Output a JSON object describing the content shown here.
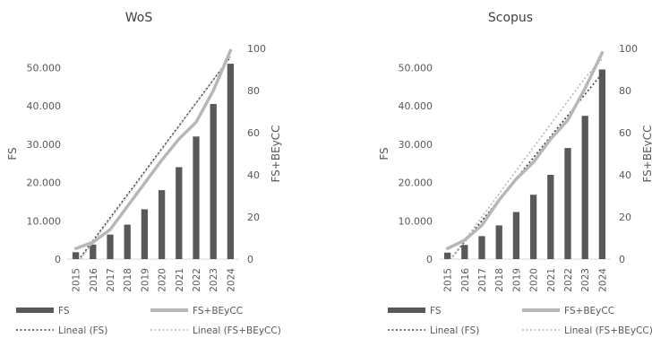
{
  "chart_data": [
    {
      "type": "bar",
      "title": "WoS",
      "categories": [
        "2015",
        "2016",
        "2017",
        "2018",
        "2019",
        "2020",
        "2021",
        "2022",
        "2023",
        "2024"
      ],
      "ylabel": "FS",
      "y2label": "FS+BEyCC",
      "ylim": [
        0,
        55000
      ],
      "y2lim": [
        0,
        100
      ],
      "yticks": [
        "0",
        "10.000",
        "20.000",
        "30.000",
        "40.000",
        "50.000"
      ],
      "y2ticks": [
        "0",
        "20",
        "40",
        "60",
        "80",
        "100"
      ],
      "series": [
        {
          "name": "FS",
          "kind": "bar",
          "axis": "left",
          "values": [
            1800,
            3800,
            6400,
            9000,
            13000,
            18000,
            24000,
            32000,
            40500,
            51000
          ]
        },
        {
          "name": "FS+BEyCC",
          "kind": "line",
          "axis": "right",
          "values": [
            5,
            8,
            14,
            25,
            36,
            47,
            57,
            65,
            80,
            99
          ]
        },
        {
          "name": "Lineal (FS)",
          "kind": "trend",
          "axis": "left",
          "values": [
            -1200,
            4800,
            10800,
            16800,
            22800,
            28800,
            34800,
            40800,
            46800,
            52800
          ]
        },
        {
          "name": "Lineal (FS+BEyCC)",
          "kind": "trend",
          "axis": "right",
          "values": [
            -3,
            8,
            19,
            30,
            41,
            52,
            63,
            74,
            85,
            96
          ]
        }
      ],
      "legend": "bottom"
    },
    {
      "type": "bar",
      "title": "Scopus",
      "categories": [
        "2015",
        "2016",
        "2017",
        "2018",
        "2019",
        "2020",
        "2021",
        "2022",
        "2023",
        "2024"
      ],
      "ylabel": "FS",
      "y2label": "FS+BEyCC",
      "ylim": [
        0,
        55000
      ],
      "y2lim": [
        0,
        100
      ],
      "yticks": [
        "0",
        "10.000",
        "20.000",
        "30.000",
        "40.000",
        "50.000"
      ],
      "y2ticks": [
        "0",
        "20",
        "40",
        "60",
        "80",
        "100"
      ],
      "series": [
        {
          "name": "FS",
          "kind": "bar",
          "axis": "left",
          "values": [
            1700,
            3700,
            6000,
            8800,
            12300,
            16800,
            22000,
            29000,
            37400,
            49500
          ]
        },
        {
          "name": "FS+BEyCC",
          "kind": "line",
          "axis": "right",
          "values": [
            5,
            9,
            16,
            28,
            38,
            46,
            57,
            66,
            81,
            98
          ]
        },
        {
          "name": "Lineal (FS)",
          "kind": "trend",
          "axis": "left",
          "values": [
            -1000,
            4500,
            10000,
            15500,
            21000,
            26500,
            32000,
            37500,
            43000,
            48500
          ]
        },
        {
          "name": "Lineal (FS+BEyCC)",
          "kind": "trend",
          "axis": "right",
          "values": [
            -2,
            9,
            20,
            31,
            42,
            53,
            64,
            75,
            86,
            95
          ]
        }
      ],
      "legend": "bottom"
    }
  ],
  "colors": {
    "bar": "#595959",
    "line": "#b7b7b7",
    "trend_fs": "#404040",
    "trend_total": "#b7b7b7",
    "axis_text": "#595959",
    "baseline": "#d9d9d9"
  }
}
